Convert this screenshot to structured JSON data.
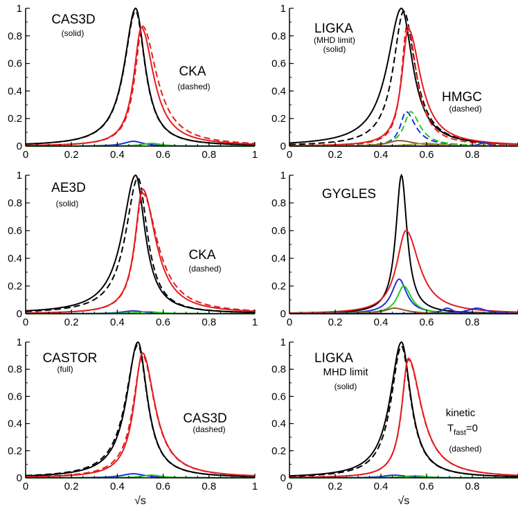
{
  "figure": {
    "xlabel": "√s",
    "colors": {
      "black": "#000000",
      "red": "#e41a1c",
      "blue": "#1f2fd6",
      "green": "#22cc22",
      "brown": "#8b5a2b",
      "olive": "#9a9a2a"
    }
  },
  "chart_data": [
    {
      "type": "line",
      "panel": "top-left",
      "xlim": [
        0,
        1
      ],
      "ylim": [
        0,
        1
      ],
      "xticks": [
        "0",
        "0.2",
        "0.4",
        "0.6",
        "0.8",
        "1"
      ],
      "yticks": [
        "0",
        "0.2",
        "0.4",
        "0.6",
        "0.8",
        "1"
      ],
      "xlabel": "",
      "annotations": [
        {
          "text": "CAS3D",
          "sub": "(solid)"
        },
        {
          "text": "CKA",
          "sub": "(dashed)"
        }
      ],
      "series": [
        {
          "color": "black",
          "dash": false,
          "peak": 1.0,
          "center": 0.48,
          "wl": 0.06,
          "wr": 0.05
        },
        {
          "color": "black",
          "dash": true,
          "peak": 0.98,
          "center": 0.48,
          "wl": 0.06,
          "wr": 0.05
        },
        {
          "color": "red",
          "dash": false,
          "peak": 0.86,
          "center": 0.505,
          "wl": 0.04,
          "wr": 0.065
        },
        {
          "color": "red",
          "dash": true,
          "peak": 0.87,
          "center": 0.51,
          "wl": 0.04,
          "wr": 0.075
        },
        {
          "color": "blue",
          "dash": false,
          "peak": 0.035,
          "center": 0.47,
          "wl": 0.05,
          "wr": 0.05
        },
        {
          "color": "green",
          "dash": false,
          "peak": 0.02,
          "center": 0.55,
          "wl": 0.05,
          "wr": 0.05
        }
      ]
    },
    {
      "type": "line",
      "panel": "top-right",
      "xlim": [
        0,
        1
      ],
      "ylim": [
        0,
        1
      ],
      "xticks": [
        "0",
        "0.2",
        "0.4",
        "0.6",
        "0.8",
        "1"
      ],
      "yticks": [
        "0",
        "0.2",
        "0.4",
        "0.6",
        "0.8",
        "1"
      ],
      "xlabel": "",
      "annotations": [
        {
          "text": "LIGKA",
          "sub": "(MHD limit)",
          "sub2": "(solid)"
        },
        {
          "text": "HMGC",
          "sub": "(dashed)"
        }
      ],
      "series": [
        {
          "color": "black",
          "dash": false,
          "peak": 1.0,
          "center": 0.49,
          "wl": 0.075,
          "wr": 0.06
        },
        {
          "color": "black",
          "dash": true,
          "peak": 0.98,
          "center": 0.5,
          "wl": 0.055,
          "wr": 0.06
        },
        {
          "color": "red",
          "dash": false,
          "peak": 0.85,
          "center": 0.52,
          "wl": 0.035,
          "wr": 0.065
        },
        {
          "color": "red",
          "dash": true,
          "peak": 0.88,
          "center": 0.515,
          "wl": 0.03,
          "wr": 0.05
        },
        {
          "color": "blue",
          "dash": true,
          "peak": 0.25,
          "center": 0.51,
          "wl": 0.03,
          "wr": 0.05
        },
        {
          "color": "green",
          "dash": true,
          "peak": 0.25,
          "center": 0.53,
          "wl": 0.035,
          "wr": 0.05
        },
        {
          "color": "blue",
          "dash": false,
          "peak": 0.03,
          "center": 0.85,
          "wl": 0.02,
          "wr": 0.02
        },
        {
          "color": "brown",
          "dash": false,
          "peak": 0.04,
          "center": 0.48,
          "wl": 0.06,
          "wr": 0.08
        },
        {
          "color": "olive",
          "dash": false,
          "peak": 0.02,
          "center": 0.6,
          "wl": 0.08,
          "wr": 0.08
        }
      ]
    },
    {
      "type": "line",
      "panel": "middle-left",
      "xlim": [
        0,
        1
      ],
      "ylim": [
        0,
        1
      ],
      "xticks": [
        "0",
        "0.2",
        "0.4",
        "0.6",
        "0.8",
        "1"
      ],
      "yticks": [
        "0",
        "0.2",
        "0.4",
        "0.6",
        "0.8",
        "1"
      ],
      "xlabel": "",
      "annotations": [
        {
          "text": "AE3D",
          "sub": "(solid)"
        },
        {
          "text": "CKA",
          "sub": "(dashed)"
        }
      ],
      "series": [
        {
          "color": "black",
          "dash": false,
          "peak": 1.0,
          "center": 0.48,
          "wl": 0.07,
          "wr": 0.05
        },
        {
          "color": "black",
          "dash": true,
          "peak": 0.98,
          "center": 0.49,
          "wl": 0.065,
          "wr": 0.05
        },
        {
          "color": "red",
          "dash": false,
          "peak": 0.9,
          "center": 0.51,
          "wl": 0.04,
          "wr": 0.07
        },
        {
          "color": "red",
          "dash": true,
          "peak": 0.87,
          "center": 0.51,
          "wl": 0.04,
          "wr": 0.08
        },
        {
          "color": "blue",
          "dash": false,
          "peak": 0.02,
          "center": 0.47,
          "wl": 0.06,
          "wr": 0.06
        },
        {
          "color": "green",
          "dash": false,
          "peak": 0.015,
          "center": 0.53,
          "wl": 0.06,
          "wr": 0.06
        }
      ]
    },
    {
      "type": "line",
      "panel": "middle-right",
      "xlim": [
        0,
        1
      ],
      "ylim": [
        0,
        1
      ],
      "xticks": [
        "0",
        "0.2",
        "0.4",
        "0.6",
        "0.8",
        "1"
      ],
      "yticks": [
        "0",
        "0.2",
        "0.4",
        "0.6",
        "0.8",
        "1"
      ],
      "xlabel": "",
      "annotations": [
        {
          "text": "GYGLES"
        }
      ],
      "series": [
        {
          "color": "black",
          "dash": false,
          "peak": 1.0,
          "center": 0.49,
          "wl": 0.03,
          "wr": 0.03
        },
        {
          "color": "red",
          "dash": false,
          "peak": 0.6,
          "center": 0.51,
          "wl": 0.05,
          "wr": 0.07
        },
        {
          "color": "blue",
          "dash": false,
          "peak": 0.25,
          "center": 0.48,
          "wl": 0.04,
          "wr": 0.04
        },
        {
          "color": "green",
          "dash": false,
          "peak": 0.2,
          "center": 0.5,
          "wl": 0.035,
          "wr": 0.04
        },
        {
          "color": "blue",
          "dash": false,
          "peak": 0.04,
          "center": 0.69,
          "wl": 0.03,
          "wr": 0.03
        },
        {
          "color": "blue",
          "dash": false,
          "peak": 0.04,
          "center": 0.82,
          "wl": 0.05,
          "wr": 0.05
        },
        {
          "color": "brown",
          "dash": false,
          "peak": 0.04,
          "center": 0.46,
          "wl": 0.05,
          "wr": 0.06
        }
      ]
    },
    {
      "type": "line",
      "panel": "bottom-left",
      "xlim": [
        0,
        1
      ],
      "ylim": [
        0,
        1
      ],
      "xticks": [
        "0",
        "0.2",
        "0.4",
        "0.6",
        "0.8",
        "1"
      ],
      "yticks": [
        "0",
        "0.2",
        "0.4",
        "0.6",
        "0.8",
        "1"
      ],
      "xlabel": "√s",
      "annotations": [
        {
          "text": "CASTOR",
          "sub": "(full)"
        },
        {
          "text": "CAS3D",
          "sub": "(dashed)"
        }
      ],
      "series": [
        {
          "color": "black",
          "dash": false,
          "peak": 1.0,
          "center": 0.49,
          "wl": 0.06,
          "wr": 0.05
        },
        {
          "color": "black",
          "dash": true,
          "peak": 0.98,
          "center": 0.49,
          "wl": 0.065,
          "wr": 0.05
        },
        {
          "color": "red",
          "dash": false,
          "peak": 0.92,
          "center": 0.51,
          "wl": 0.045,
          "wr": 0.065
        },
        {
          "color": "red",
          "dash": true,
          "peak": 0.9,
          "center": 0.51,
          "wl": 0.05,
          "wr": 0.065
        },
        {
          "color": "blue",
          "dash": false,
          "peak": 0.03,
          "center": 0.47,
          "wl": 0.06,
          "wr": 0.06
        },
        {
          "color": "green",
          "dash": false,
          "peak": 0.02,
          "center": 0.55,
          "wl": 0.05,
          "wr": 0.05
        }
      ]
    },
    {
      "type": "line",
      "panel": "bottom-right",
      "xlim": [
        0,
        1
      ],
      "ylim": [
        0,
        1
      ],
      "xticks": [
        "0",
        "0.2",
        "0.4",
        "0.6",
        "0.8",
        "1"
      ],
      "yticks": [
        "0",
        "0.2",
        "0.4",
        "0.6",
        "0.8",
        "1"
      ],
      "xlabel": "√s",
      "annotations": [
        {
          "text": "LIGKA",
          "sub": "MHD limit",
          "sub2": "(solid)"
        },
        {
          "text": "kinetic",
          "sub": "T",
          "subsub": "fast",
          "sub_tail": "=0",
          "sub2": "(dashed)"
        }
      ],
      "series": [
        {
          "color": "black",
          "dash": false,
          "peak": 1.0,
          "center": 0.49,
          "wl": 0.06,
          "wr": 0.05
        },
        {
          "color": "black",
          "dash": true,
          "peak": 0.97,
          "center": 0.49,
          "wl": 0.055,
          "wr": 0.05
        },
        {
          "color": "red",
          "dash": false,
          "peak": 0.88,
          "center": 0.52,
          "wl": 0.035,
          "wr": 0.07
        },
        {
          "color": "red",
          "dash": true,
          "peak": 0.87,
          "center": 0.52,
          "wl": 0.035,
          "wr": 0.07
        },
        {
          "color": "blue",
          "dash": false,
          "peak": 0.02,
          "center": 0.46,
          "wl": 0.06,
          "wr": 0.06
        },
        {
          "color": "green",
          "dash": false,
          "peak": 0.015,
          "center": 0.55,
          "wl": 0.06,
          "wr": 0.06
        }
      ]
    }
  ]
}
